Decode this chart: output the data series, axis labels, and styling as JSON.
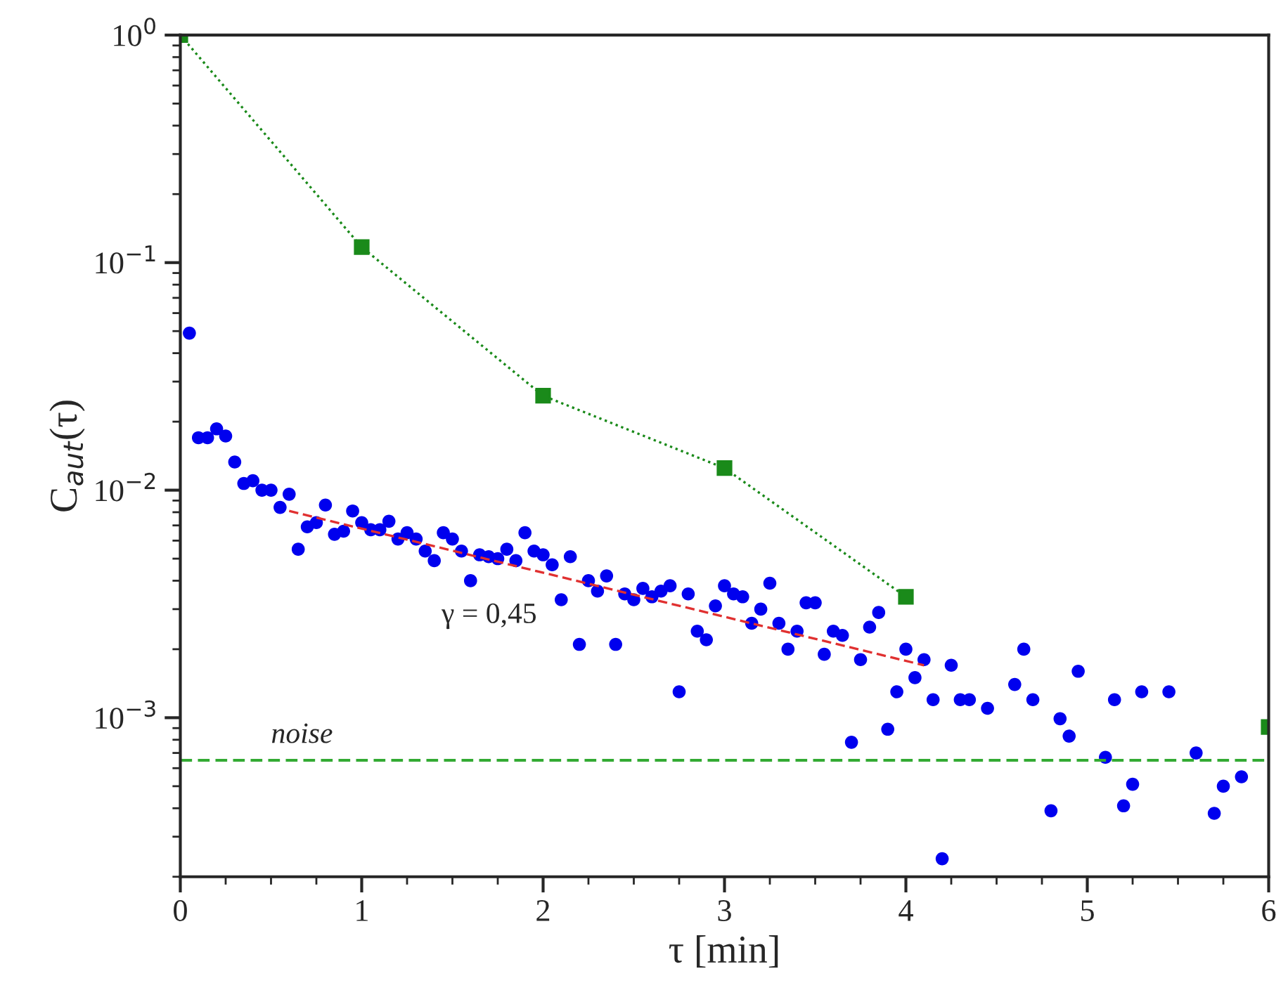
{
  "chart_data": {
    "type": "scatter",
    "xlabel": "τ [min]",
    "ylabel": "C$_{aut}$(τ)",
    "log": "y",
    "xlim": [
      0,
      6
    ],
    "ylim": [
      0.0002,
      1
    ],
    "xticks": [
      0,
      1,
      2,
      3,
      4,
      5,
      6
    ],
    "yticks": [
      {
        "value": 1,
        "label": "10$^{0}$"
      },
      {
        "value": 0.1,
        "label": "10$^{−1}$"
      },
      {
        "value": 0.01,
        "label": "10$^{−2}$"
      },
      {
        "value": 0.001,
        "label": "10$^{−3}$"
      }
    ],
    "grid": false,
    "legend": false,
    "series": [
      {
        "color": "#0000ee",
        "marker": "circle",
        "x": [
          0.05,
          0.1,
          0.15,
          0.2,
          0.25,
          0.3,
          0.35,
          0.4,
          0.45,
          0.5,
          0.55,
          0.6,
          0.65,
          0.7,
          0.75,
          0.8,
          0.85,
          0.9,
          0.95,
          1.0,
          1.05,
          1.1,
          1.15,
          1.2,
          1.25,
          1.3,
          1.35,
          1.4,
          1.45,
          1.5,
          1.55,
          1.6,
          1.65,
          1.7,
          1.75,
          1.8,
          1.85,
          1.9,
          1.95,
          2.0,
          2.05,
          2.1,
          2.15,
          2.2,
          2.25,
          2.3,
          2.35,
          2.4,
          2.45,
          2.5,
          2.55,
          2.6,
          2.65,
          2.7,
          2.75,
          2.8,
          2.85,
          2.9,
          2.95,
          3.0,
          3.05,
          3.1,
          3.15,
          3.2,
          3.25,
          3.3,
          3.35,
          3.4,
          3.45,
          3.5,
          3.55,
          3.6,
          3.65,
          3.7,
          3.75,
          3.8,
          3.85,
          3.9,
          3.95,
          4.0,
          4.05,
          4.1,
          4.15,
          4.2,
          4.25,
          4.3,
          4.35,
          4.45,
          4.6,
          4.65,
          4.7,
          4.8,
          4.85,
          4.9,
          4.95,
          5.1,
          5.15,
          5.2,
          5.25,
          5.3,
          5.45,
          5.6,
          5.7,
          5.75,
          5.85
        ],
        "values": [
          0.049,
          0.017,
          0.017,
          0.0186,
          0.0173,
          0.0133,
          0.0107,
          0.011,
          0.01,
          0.01,
          0.0084,
          0.0096,
          0.0055,
          0.0069,
          0.0072,
          0.0086,
          0.0064,
          0.0066,
          0.0081,
          0.0072,
          0.0067,
          0.0067,
          0.0073,
          0.0061,
          0.0065,
          0.0061,
          0.0054,
          0.0049,
          0.0065,
          0.0061,
          0.0054,
          0.004,
          0.0052,
          0.0051,
          0.005,
          0.0055,
          0.0049,
          0.0065,
          0.0054,
          0.0052,
          0.0047,
          0.0033,
          0.0051,
          0.0021,
          0.004,
          0.0036,
          0.0042,
          0.0021,
          0.0035,
          0.0033,
          0.0037,
          0.0034,
          0.0036,
          0.0038,
          0.0013,
          0.0035,
          0.0024,
          0.0022,
          0.0031,
          0.0038,
          0.0035,
          0.0034,
          0.0026,
          0.003,
          0.0039,
          0.0026,
          0.002,
          0.0024,
          0.0032,
          0.0032,
          0.0019,
          0.0024,
          0.0023,
          0.00078,
          0.0018,
          0.0025,
          0.0029,
          0.00089,
          0.0013,
          0.002,
          0.0015,
          0.0018,
          0.0012,
          0.00024,
          0.0017,
          0.0012,
          0.0012,
          0.0011,
          0.0014,
          0.002,
          0.0012,
          0.00039,
          0.00099,
          0.00083,
          0.0016,
          0.00067,
          0.0012,
          0.00041,
          0.00051,
          0.0013,
          0.0013,
          0.0007,
          0.00038,
          0.0005,
          0.00055
        ]
      },
      {
        "type": "line",
        "color": "#1a8a1a",
        "marker": "square",
        "line_style": "dotted",
        "x": [
          0,
          1,
          2,
          3,
          4,
          5,
          6
        ],
        "values": [
          1.0,
          0.117,
          0.026,
          0.0125,
          0.0034,
          null,
          0.00091
        ]
      },
      {
        "type": "line",
        "color": "#e03030",
        "marker": "none",
        "line_style": "dashed",
        "x": [
          0.6,
          4.1
        ],
        "values": [
          0.0081,
          0.0017
        ]
      }
    ],
    "ref_lines": [
      {
        "axis": "y",
        "value": 0.00065,
        "label": "noise",
        "color": "#33aa33",
        "line_style": "dashed"
      }
    ],
    "annotations": [
      "γ = 0,45"
    ]
  }
}
